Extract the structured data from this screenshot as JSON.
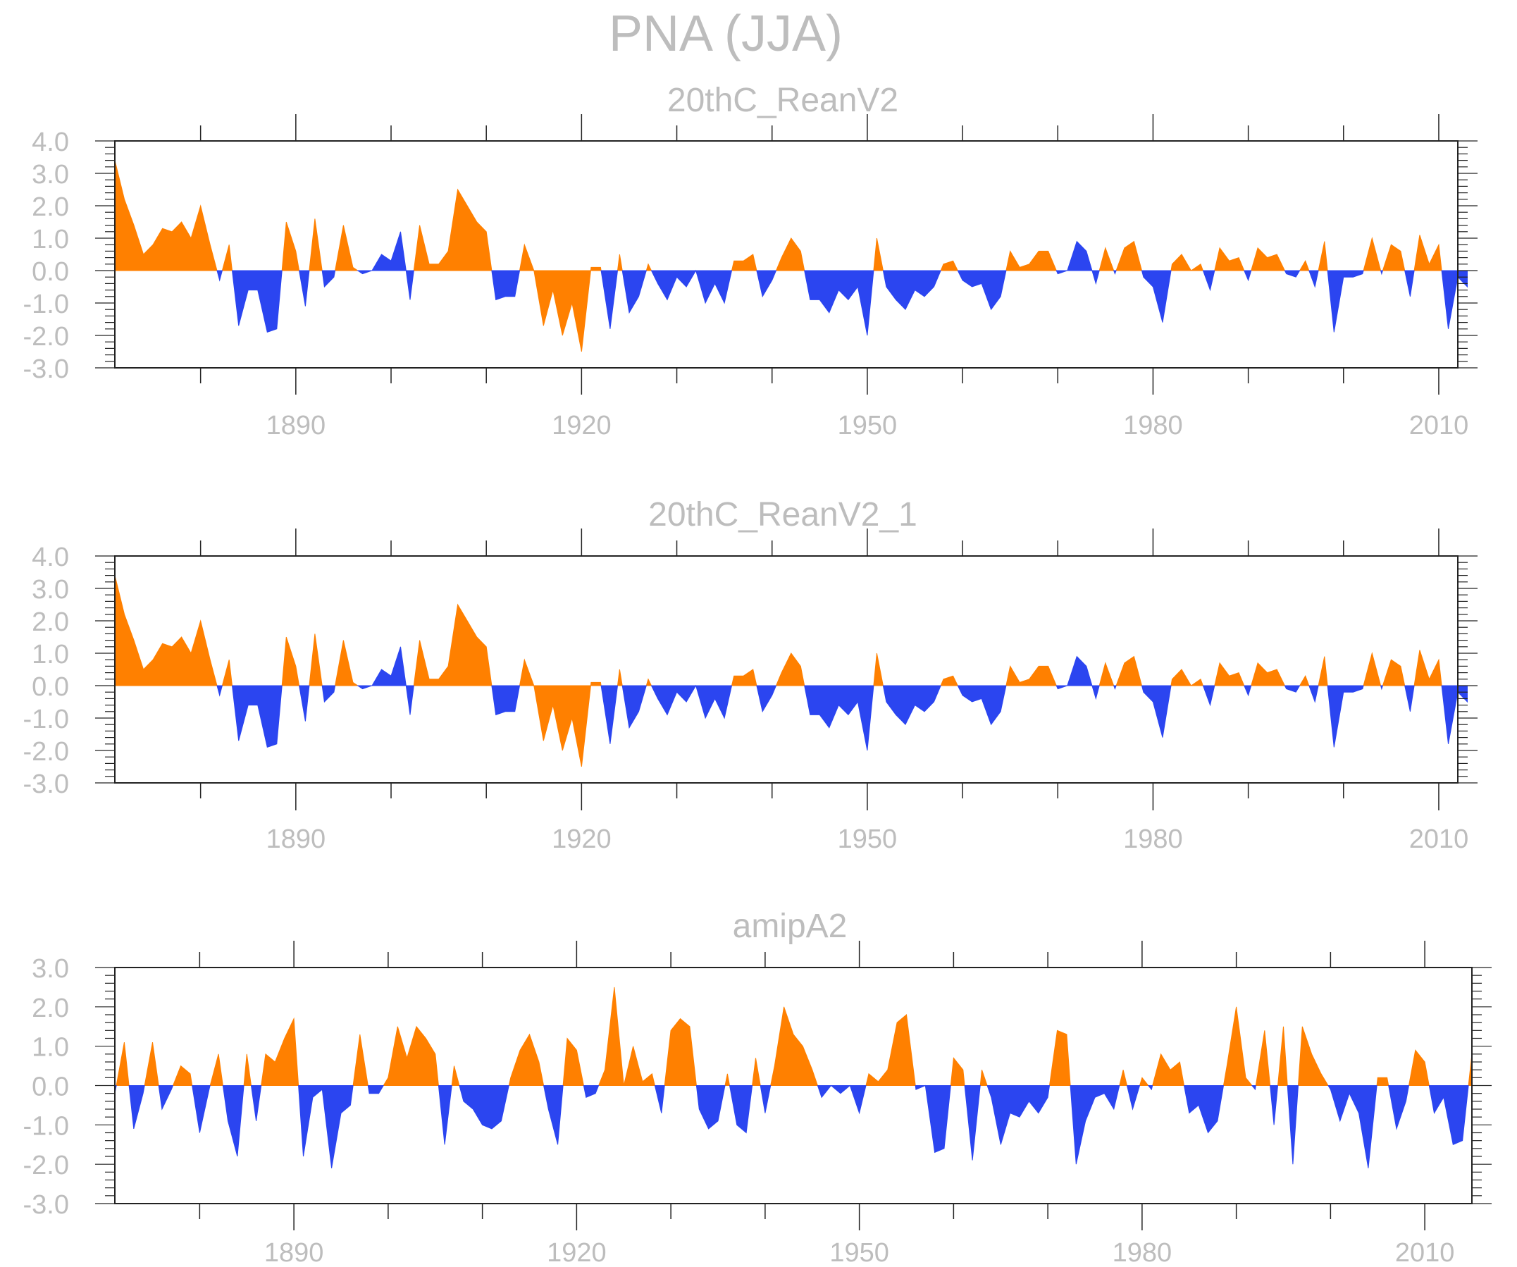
{
  "figure": {
    "title": "PNA (JJA)",
    "pos_color": "#ff8000",
    "neg_color": "#2b45f0",
    "text_color": "#bdbdbd",
    "frame_color": "#222222"
  },
  "chart_data": [
    {
      "type": "area",
      "title": "20thC_ReanV2",
      "xlabel": "",
      "ylabel": "",
      "xlim": [
        1871,
        2012
      ],
      "ylim": [
        -3,
        4
      ],
      "yticks": [
        4,
        3,
        2,
        1,
        0,
        -1,
        -2,
        -3
      ],
      "ytick_labels": [
        "4.0",
        "3.0",
        "2.0",
        "1.0",
        "0.0",
        "-1.0",
        "-2.0",
        "-3.0"
      ],
      "xticks": [
        1890,
        1920,
        1950,
        1980,
        2010
      ],
      "xtick_labels": [
        "1890",
        "1920",
        "1950",
        "1980",
        "2010"
      ],
      "grid": false,
      "legend": "none",
      "x_start": 1871,
      "values": [
        3.4,
        2.2,
        1.4,
        0.5,
        0.8,
        1.3,
        1.2,
        1.5,
        1.0,
        2.0,
        0.8,
        -0.3,
        0.8,
        -1.7,
        -0.6,
        -0.6,
        -1.9,
        -1.8,
        1.5,
        0.6,
        -1.1,
        1.6,
        -0.5,
        -0.2,
        1.4,
        0.1,
        -0.1,
        0.0,
        0.5,
        0.3,
        1.2,
        -0.9,
        1.4,
        0.2,
        0.2,
        0.6,
        2.5,
        2.0,
        1.5,
        1.2,
        -0.9,
        -0.8,
        -0.8,
        0.8,
        -0.0,
        -1.7,
        -0.6,
        -2.0,
        -1.0,
        -2.5,
        0.1,
        0.1,
        -1.8,
        0.5,
        -1.3,
        -0.8,
        0.2,
        -0.4,
        -0.9,
        -0.2,
        -0.5,
        0.0,
        -1.0,
        -0.4,
        -1.0,
        0.3,
        0.3,
        0.5,
        -0.8,
        -0.3,
        0.4,
        1.0,
        0.6,
        -0.9,
        -0.9,
        -1.3,
        -0.6,
        -0.9,
        -0.5,
        -2.0,
        1.0,
        -0.5,
        -0.9,
        -1.2,
        -0.6,
        -0.8,
        -0.5,
        0.2,
        0.3,
        -0.3,
        -0.5,
        -0.4,
        -1.2,
        -0.8,
        0.6,
        0.1,
        0.2,
        0.6,
        0.6,
        -0.1,
        0.0,
        0.9,
        0.6,
        -0.4,
        0.7,
        -0.1,
        0.7,
        0.9,
        -0.2,
        -0.5,
        -1.6,
        0.2,
        0.5,
        0.0,
        0.2,
        -0.6,
        0.7,
        0.3,
        0.4,
        -0.3,
        0.7,
        0.4,
        0.5,
        -0.1,
        -0.2,
        0.3,
        -0.5,
        0.9,
        -1.9,
        -0.2,
        -0.2,
        -0.1,
        1.0,
        -0.1,
        0.8,
        0.6,
        -0.8,
        1.1,
        0.2,
        0.8,
        -1.8,
        -0.2,
        -0.5
      ]
    },
    {
      "type": "area",
      "title": "20thC_ReanV2_1",
      "xlabel": "",
      "ylabel": "",
      "xlim": [
        1871,
        2012
      ],
      "ylim": [
        -3,
        4
      ],
      "yticks": [
        4,
        3,
        2,
        1,
        0,
        -1,
        -2,
        -3
      ],
      "ytick_labels": [
        "4.0",
        "3.0",
        "2.0",
        "1.0",
        "0.0",
        "-1.0",
        "-2.0",
        "-3.0"
      ],
      "xticks": [
        1890,
        1920,
        1950,
        1980,
        2010
      ],
      "xtick_labels": [
        "1890",
        "1920",
        "1950",
        "1980",
        "2010"
      ],
      "grid": false,
      "legend": "none",
      "x_start": 1871,
      "values": [
        3.4,
        2.2,
        1.4,
        0.5,
        0.8,
        1.3,
        1.2,
        1.5,
        1.0,
        2.0,
        0.8,
        -0.3,
        0.8,
        -1.7,
        -0.6,
        -0.6,
        -1.9,
        -1.8,
        1.5,
        0.6,
        -1.1,
        1.6,
        -0.5,
        -0.2,
        1.4,
        0.1,
        -0.1,
        0.0,
        0.5,
        0.3,
        1.2,
        -0.9,
        1.4,
        0.2,
        0.2,
        0.6,
        2.5,
        2.0,
        1.5,
        1.2,
        -0.9,
        -0.8,
        -0.8,
        0.8,
        -0.0,
        -1.7,
        -0.6,
        -2.0,
        -1.0,
        -2.5,
        0.1,
        0.1,
        -1.8,
        0.5,
        -1.3,
        -0.8,
        0.2,
        -0.4,
        -0.9,
        -0.2,
        -0.5,
        0.0,
        -1.0,
        -0.4,
        -1.0,
        0.3,
        0.3,
        0.5,
        -0.8,
        -0.3,
        0.4,
        1.0,
        0.6,
        -0.9,
        -0.9,
        -1.3,
        -0.6,
        -0.9,
        -0.5,
        -2.0,
        1.0,
        -0.5,
        -0.9,
        -1.2,
        -0.6,
        -0.8,
        -0.5,
        0.2,
        0.3,
        -0.3,
        -0.5,
        -0.4,
        -1.2,
        -0.8,
        0.6,
        0.1,
        0.2,
        0.6,
        0.6,
        -0.1,
        0.0,
        0.9,
        0.6,
        -0.4,
        0.7,
        -0.1,
        0.7,
        0.9,
        -0.2,
        -0.5,
        -1.6,
        0.2,
        0.5,
        0.0,
        0.2,
        -0.6,
        0.7,
        0.3,
        0.4,
        -0.3,
        0.7,
        0.4,
        0.5,
        -0.1,
        -0.2,
        0.3,
        -0.5,
        0.9,
        -1.9,
        -0.2,
        -0.2,
        -0.1,
        1.0,
        -0.1,
        0.8,
        0.6,
        -0.8,
        1.1,
        0.2,
        0.8,
        -1.8,
        -0.2,
        -0.5
      ]
    },
    {
      "type": "area",
      "title": "amipA2",
      "xlabel": "",
      "ylabel": "",
      "xlim": [
        1871,
        2015
      ],
      "ylim": [
        -3,
        3
      ],
      "yticks": [
        3,
        2,
        1,
        0,
        -1,
        -2,
        -3
      ],
      "ytick_labels": [
        "3.0",
        "2.0",
        "1.0",
        "0.0",
        "-1.0",
        "-2.0",
        "-3.0"
      ],
      "xticks": [
        1890,
        1920,
        1950,
        1980,
        2010
      ],
      "xtick_labels": [
        "1890",
        "1920",
        "1950",
        "1980",
        "2010"
      ],
      "grid": false,
      "legend": "none",
      "x_start": 1871,
      "values": [
        -0.2,
        1.1,
        -1.1,
        -0.2,
        1.1,
        -0.6,
        -0.1,
        0.5,
        0.3,
        -1.2,
        -0.1,
        0.8,
        -0.9,
        -1.8,
        0.8,
        -0.9,
        0.8,
        0.6,
        1.2,
        1.7,
        -1.8,
        -0.3,
        -0.1,
        -2.1,
        -0.7,
        -0.5,
        1.3,
        -0.2,
        -0.2,
        0.2,
        1.5,
        0.7,
        1.5,
        1.2,
        0.8,
        -1.5,
        0.5,
        -0.4,
        -0.6,
        -1.0,
        -1.1,
        -0.9,
        0.2,
        0.9,
        1.3,
        0.6,
        -0.6,
        -1.5,
        1.2,
        0.9,
        -0.3,
        -0.2,
        0.4,
        2.5,
        -0.0,
        1.0,
        0.1,
        0.3,
        -0.7,
        1.4,
        1.7,
        1.5,
        -0.6,
        -1.1,
        -0.9,
        0.3,
        -1.0,
        -1.2,
        0.7,
        -0.7,
        0.5,
        2.0,
        1.3,
        1.0,
        0.4,
        -0.3,
        0.0,
        -0.2,
        -0.0,
        -0.7,
        0.3,
        0.1,
        0.4,
        1.6,
        1.8,
        -0.1,
        0.0,
        -1.7,
        -1.6,
        0.7,
        0.4,
        -1.9,
        0.4,
        -0.3,
        -1.5,
        -0.7,
        -0.8,
        -0.4,
        -0.7,
        -0.3,
        1.4,
        1.3,
        -2.0,
        -0.9,
        -0.3,
        -0.2,
        -0.6,
        0.4,
        -0.6,
        0.2,
        -0.1,
        0.8,
        0.4,
        0.6,
        -0.7,
        -0.5,
        -1.2,
        -0.9,
        0.5,
        2.0,
        0.2,
        -0.1,
        1.4,
        -1.0,
        1.5,
        -2.0,
        1.5,
        0.8,
        0.3,
        -0.1,
        -0.9,
        -0.2,
        -0.7,
        -2.1,
        0.2,
        0.2,
        -1.1,
        -0.4,
        0.9,
        0.6,
        -0.7,
        -0.3,
        -1.5,
        -1.4,
        0.8
      ]
    }
  ]
}
